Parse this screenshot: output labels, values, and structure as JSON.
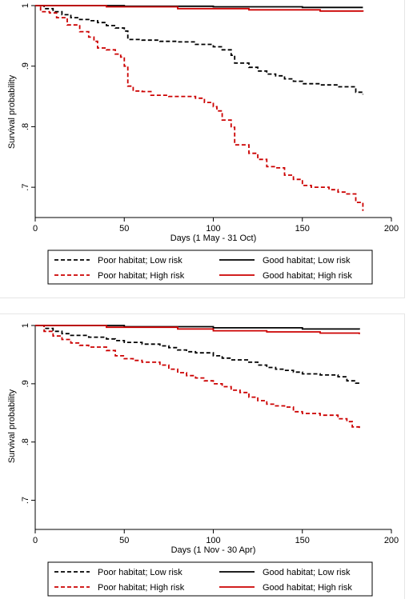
{
  "chart_data": [
    {
      "type": "line",
      "title": "",
      "xlabel": "Days (1 May - 31 Oct)",
      "ylabel": "Survival probability",
      "xlim": [
        0,
        200
      ],
      "ylim": [
        0.65,
        1.0
      ],
      "x_ticks": [
        0,
        50,
        100,
        150,
        200
      ],
      "x_tick_labels": [
        "0",
        "50",
        "100",
        "150",
        "200"
      ],
      "y_ticks": [
        0.7,
        0.8,
        0.9,
        1.0
      ],
      "y_tick_labels": [
        ".7",
        ".8",
        ".9",
        "1"
      ],
      "grid": false,
      "legend": "below",
      "series": [
        {
          "name": "Poor habitat; Low risk",
          "color": "#000000",
          "dash": "dashed",
          "points": [
            [
              0,
              1.0
            ],
            [
              5,
              0.995
            ],
            [
              10,
              0.99
            ],
            [
              15,
              0.985
            ],
            [
              20,
              0.98
            ],
            [
              25,
              0.977
            ],
            [
              30,
              0.975
            ],
            [
              35,
              0.972
            ],
            [
              40,
              0.967
            ],
            [
              45,
              0.963
            ],
            [
              50,
              0.958
            ],
            [
              52,
              0.944
            ],
            [
              60,
              0.943
            ],
            [
              70,
              0.941
            ],
            [
              80,
              0.94
            ],
            [
              90,
              0.936
            ],
            [
              100,
              0.932
            ],
            [
              105,
              0.927
            ],
            [
              110,
              0.918
            ],
            [
              112,
              0.905
            ],
            [
              120,
              0.898
            ],
            [
              125,
              0.892
            ],
            [
              130,
              0.887
            ],
            [
              135,
              0.884
            ],
            [
              140,
              0.879
            ],
            [
              145,
              0.875
            ],
            [
              150,
              0.871
            ],
            [
              160,
              0.869
            ],
            [
              170,
              0.866
            ],
            [
              180,
              0.857
            ],
            [
              184,
              0.853
            ]
          ]
        },
        {
          "name": "Poor habitat; High risk",
          "color": "#cc0000",
          "dash": "dashed",
          "points": [
            [
              0,
              1.0
            ],
            [
              3,
              0.99
            ],
            [
              8,
              0.988
            ],
            [
              12,
              0.98
            ],
            [
              18,
              0.968
            ],
            [
              25,
              0.957
            ],
            [
              30,
              0.948
            ],
            [
              33,
              0.941
            ],
            [
              35,
              0.93
            ],
            [
              40,
              0.927
            ],
            [
              45,
              0.92
            ],
            [
              48,
              0.915
            ],
            [
              50,
              0.9
            ],
            [
              52,
              0.867
            ],
            [
              55,
              0.859
            ],
            [
              60,
              0.858
            ],
            [
              65,
              0.852
            ],
            [
              75,
              0.85
            ],
            [
              85,
              0.85
            ],
            [
              90,
              0.847
            ],
            [
              95,
              0.84
            ],
            [
              100,
              0.833
            ],
            [
              102,
              0.826
            ],
            [
              105,
              0.811
            ],
            [
              110,
              0.799
            ],
            [
              112,
              0.77
            ],
            [
              120,
              0.756
            ],
            [
              125,
              0.746
            ],
            [
              130,
              0.734
            ],
            [
              135,
              0.732
            ],
            [
              140,
              0.72
            ],
            [
              145,
              0.713
            ],
            [
              150,
              0.703
            ],
            [
              155,
              0.7
            ],
            [
              165,
              0.696
            ],
            [
              170,
              0.692
            ],
            [
              175,
              0.689
            ],
            [
              180,
              0.675
            ],
            [
              184,
              0.661
            ]
          ]
        },
        {
          "name": "Good habitat; Low risk",
          "color": "#000000",
          "dash": "solid",
          "points": [
            [
              0,
              1.0
            ],
            [
              50,
              0.999
            ],
            [
              100,
              0.998
            ],
            [
              150,
              0.997
            ],
            [
              184,
              0.997
            ]
          ]
        },
        {
          "name": "Good habitat; High risk",
          "color": "#cc0000",
          "dash": "solid",
          "points": [
            [
              0,
              1.0
            ],
            [
              40,
              0.998
            ],
            [
              80,
              0.995
            ],
            [
              120,
              0.993
            ],
            [
              160,
              0.991
            ],
            [
              184,
              0.99
            ]
          ]
        }
      ]
    },
    {
      "type": "line",
      "title": "",
      "xlabel": "Days (1 Nov - 30 Apr)",
      "ylabel": "Survival probability",
      "xlim": [
        0,
        200
      ],
      "ylim": [
        0.65,
        1.0
      ],
      "x_ticks": [
        0,
        50,
        100,
        150,
        200
      ],
      "x_tick_labels": [
        "0",
        "50",
        "100",
        "150",
        "200"
      ],
      "y_ticks": [
        0.7,
        0.8,
        0.9,
        1.0
      ],
      "y_tick_labels": [
        ".7",
        ".8",
        ".9",
        "1"
      ],
      "grid": false,
      "legend": "below",
      "series": [
        {
          "name": "Poor habitat; Low risk",
          "color": "#000000",
          "dash": "dashed",
          "points": [
            [
              0,
              1.0
            ],
            [
              5,
              0.995
            ],
            [
              10,
              0.99
            ],
            [
              15,
              0.986
            ],
            [
              20,
              0.983
            ],
            [
              30,
              0.98
            ],
            [
              40,
              0.977
            ],
            [
              45,
              0.974
            ],
            [
              50,
              0.971
            ],
            [
              60,
              0.968
            ],
            [
              70,
              0.965
            ],
            [
              75,
              0.962
            ],
            [
              80,
              0.958
            ],
            [
              85,
              0.955
            ],
            [
              90,
              0.953
            ],
            [
              100,
              0.948
            ],
            [
              105,
              0.944
            ],
            [
              110,
              0.941
            ],
            [
              120,
              0.937
            ],
            [
              125,
              0.932
            ],
            [
              130,
              0.928
            ],
            [
              135,
              0.925
            ],
            [
              140,
              0.923
            ],
            [
              145,
              0.92
            ],
            [
              150,
              0.917
            ],
            [
              160,
              0.915
            ],
            [
              170,
              0.912
            ],
            [
              175,
              0.905
            ],
            [
              180,
              0.901
            ],
            [
              182,
              0.9
            ]
          ]
        },
        {
          "name": "Poor habitat; High risk",
          "color": "#cc0000",
          "dash": "dashed",
          "points": [
            [
              0,
              1.0
            ],
            [
              5,
              0.99
            ],
            [
              10,
              0.982
            ],
            [
              15,
              0.976
            ],
            [
              20,
              0.97
            ],
            [
              25,
              0.966
            ],
            [
              30,
              0.963
            ],
            [
              40,
              0.957
            ],
            [
              45,
              0.948
            ],
            [
              50,
              0.943
            ],
            [
              55,
              0.94
            ],
            [
              60,
              0.937
            ],
            [
              70,
              0.932
            ],
            [
              75,
              0.925
            ],
            [
              80,
              0.919
            ],
            [
              85,
              0.914
            ],
            [
              90,
              0.91
            ],
            [
              95,
              0.905
            ],
            [
              100,
              0.9
            ],
            [
              105,
              0.895
            ],
            [
              110,
              0.889
            ],
            [
              115,
              0.885
            ],
            [
              120,
              0.877
            ],
            [
              125,
              0.871
            ],
            [
              130,
              0.865
            ],
            [
              135,
              0.862
            ],
            [
              140,
              0.86
            ],
            [
              145,
              0.852
            ],
            [
              150,
              0.849
            ],
            [
              160,
              0.846
            ],
            [
              170,
              0.84
            ],
            [
              175,
              0.835
            ],
            [
              178,
              0.826
            ],
            [
              182,
              0.82
            ]
          ]
        },
        {
          "name": "Good habitat; Low risk",
          "color": "#000000",
          "dash": "solid",
          "points": [
            [
              0,
              1.0
            ],
            [
              50,
              0.998
            ],
            [
              100,
              0.996
            ],
            [
              150,
              0.994
            ],
            [
              182,
              0.993
            ]
          ]
        },
        {
          "name": "Good habitat; High risk",
          "color": "#cc0000",
          "dash": "solid",
          "points": [
            [
              0,
              1.0
            ],
            [
              40,
              0.997
            ],
            [
              80,
              0.994
            ],
            [
              100,
              0.991
            ],
            [
              130,
              0.989
            ],
            [
              160,
              0.987
            ],
            [
              182,
              0.985
            ]
          ]
        }
      ]
    }
  ]
}
